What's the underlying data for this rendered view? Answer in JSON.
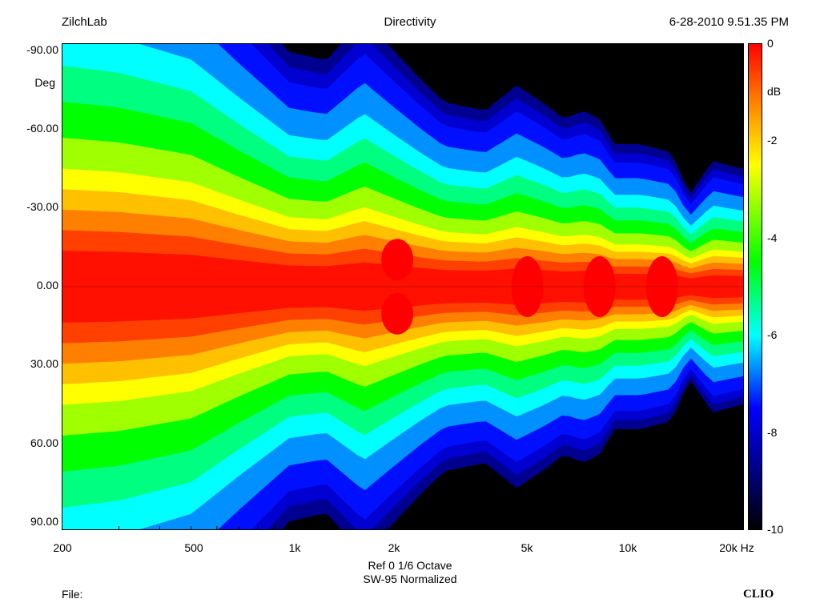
{
  "header": {
    "left": "ZilchLab",
    "center": "Directivity",
    "right": "6-28-2010 9.51.35 PM"
  },
  "footer": {
    "line1": "Ref 0   1/6 Octave",
    "line2": "SW-95 Normalized",
    "file_label": "File:",
    "brand": "CLIO"
  },
  "chart_data": {
    "type": "heatmap",
    "title": "Directivity",
    "ylabel": "Deg",
    "zlabel": "dB",
    "x_scale": "log",
    "xlim": [
      200,
      25000
    ],
    "ylim": [
      -90,
      90
    ],
    "zlim": [
      -10,
      0
    ],
    "x_ticks": [
      200,
      500,
      1000,
      2000,
      5000,
      10000,
      20000
    ],
    "x_tick_labels": [
      "200",
      "500",
      "1k",
      "2k",
      "5k",
      "10k",
      "20k Hz"
    ],
    "y_ticks": [
      -90,
      -60,
      -30,
      0,
      30,
      60,
      90
    ],
    "y_tick_labels": [
      "-90.00",
      "-60.00",
      "-30.00",
      "0.00",
      "30.00",
      "60.00",
      "90.00"
    ],
    "z_ticks": [
      0,
      -2,
      -4,
      -6,
      -8,
      -10
    ],
    "z_tick_labels": [
      "0",
      "-2",
      "-4",
      "-6",
      "-8",
      "-10"
    ],
    "colorscale": [
      "#000000",
      "#000080",
      "#0000ff",
      "#00ffff",
      "#00ff00",
      "#ffff00",
      "#ff8000",
      "#ff0000"
    ],
    "beamwidth_minus6db_deg": {
      "freq_hz": [
        200,
        300,
        500,
        700,
        1000,
        1300,
        1700,
        2000,
        2500,
        3000,
        4000,
        5000,
        6000,
        7000,
        8000,
        9000,
        10000,
        12000,
        15000,
        17000,
        20000,
        25000
      ],
      "half_angle_deg": [
        95,
        92,
        84,
        70,
        56,
        54,
        64,
        58,
        50,
        44,
        42,
        48,
        44,
        40,
        42,
        40,
        34,
        34,
        32,
        22,
        30,
        28
      ]
    },
    "peak_lobes": [
      {
        "freq_hz": 2150,
        "angle_deg": -10,
        "level_db": 0
      },
      {
        "freq_hz": 2150,
        "angle_deg": 10,
        "level_db": 0
      },
      {
        "freq_hz": 5400,
        "angle_deg": 0,
        "level_db": 0
      },
      {
        "freq_hz": 9000,
        "angle_deg": 0,
        "level_db": 0
      },
      {
        "freq_hz": 14000,
        "angle_deg": 0,
        "level_db": 0
      }
    ]
  }
}
